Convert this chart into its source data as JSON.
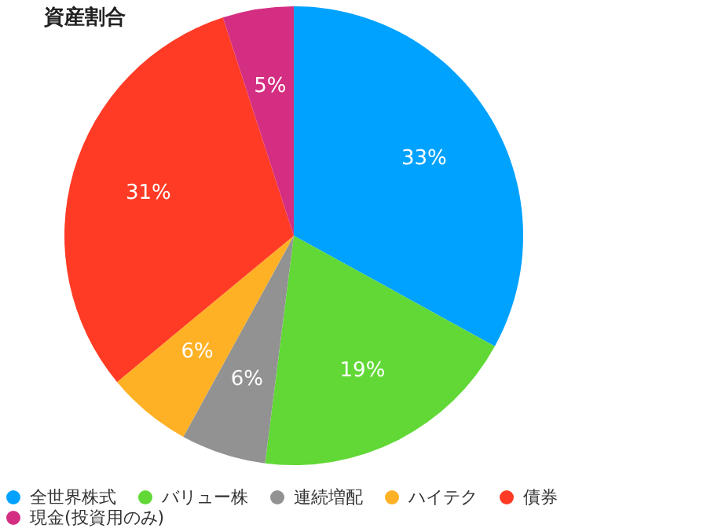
{
  "chart_data": {
    "type": "pie",
    "title": "資産割合",
    "categories": [
      "全世界株式",
      "バリュー株",
      "連続増配",
      "ハイテク",
      "債券",
      "現金(投資用のみ)"
    ],
    "values": [
      33,
      19,
      6,
      6,
      31,
      5
    ],
    "colors": [
      "#00a2ff",
      "#61d836",
      "#929292",
      "#ffb125",
      "#ff3b25",
      "#d42e82"
    ],
    "value_labels": [
      "33%",
      "19%",
      "6%",
      "6%",
      "31%",
      "5%"
    ],
    "legend": "bottom"
  }
}
